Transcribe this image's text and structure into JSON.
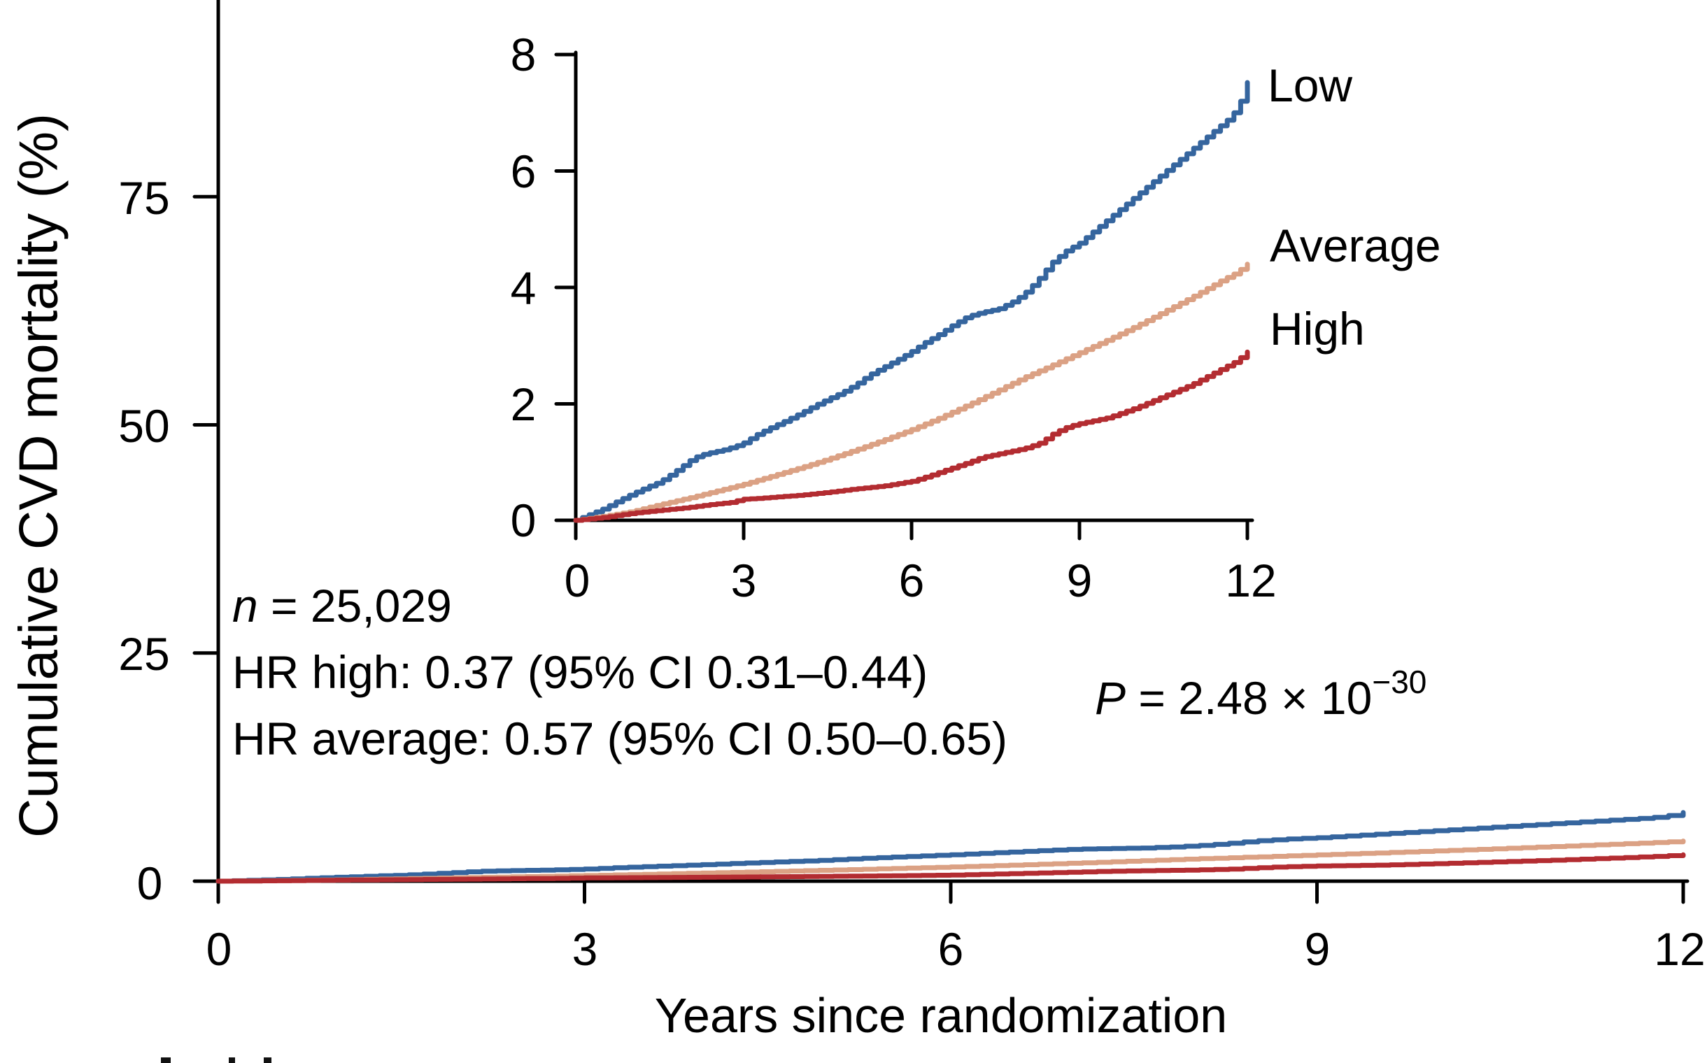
{
  "figure": {
    "y_axis": {
      "label": "Cumulative CVD mortality (%)",
      "ticks": [
        "0",
        "25",
        "50",
        "75"
      ]
    },
    "x_axis": {
      "label": "Years since randomization",
      "ticks": [
        "0",
        "3",
        "6",
        "9",
        "12"
      ]
    },
    "inset": {
      "y_ticks": [
        "0",
        "2",
        "4",
        "6",
        "8"
      ],
      "x_ticks": [
        "0",
        "3",
        "6",
        "9",
        "12"
      ]
    },
    "stats": {
      "n_italic": "n",
      "n_rest": " = 25,029",
      "hr_high": "HR high: 0.37 (95% CI 0.31–0.44)",
      "hr_average": "HR average: 0.57 (95% CI 0.50–0.65)",
      "p_italic": "P",
      "p_rest": " = 2.48 × 10",
      "p_exponent": "−30"
    }
  },
  "colors": {
    "low": "#35659E",
    "average": "#DBA184",
    "high": "#B32C31",
    "axis": "#000000"
  },
  "chart_data": {
    "type": "line",
    "title": "",
    "xlabel": "Years since randomization",
    "ylabel": "Cumulative CVD mortality (%)",
    "x_ticks": [
      0,
      3,
      6,
      9,
      12
    ],
    "xlim": [
      0,
      12
    ],
    "main_view": {
      "ylim": [
        0,
        100
      ],
      "y_ticks": [
        0,
        25,
        50,
        75
      ]
    },
    "inset_view": {
      "ylim": [
        0,
        8
      ],
      "y_ticks": [
        0,
        2,
        4,
        6,
        8
      ]
    },
    "grid": false,
    "legend_position": "right-of-inset-curve-ends",
    "annotations": [
      "n = 25,029",
      "HR high: 0.37 (95% CI 0.31–0.44)",
      "HR average: 0.57 (95% CI 0.50–0.65)",
      "P = 2.48 × 10⁻³⁰"
    ],
    "series": [
      {
        "name": "Low",
        "color": "#35659E",
        "points": [
          [
            0,
            0
          ],
          [
            0.25,
            0.1
          ],
          [
            0.5,
            0.2
          ],
          [
            0.75,
            0.33
          ],
          [
            1,
            0.45
          ],
          [
            1.25,
            0.56
          ],
          [
            1.5,
            0.66
          ],
          [
            1.75,
            0.82
          ],
          [
            1.95,
            0.96
          ],
          [
            2.1,
            1.07
          ],
          [
            2.3,
            1.14
          ],
          [
            2.6,
            1.2
          ],
          [
            2.85,
            1.27
          ],
          [
            3,
            1.33
          ],
          [
            3.25,
            1.48
          ],
          [
            3.5,
            1.6
          ],
          [
            3.75,
            1.71
          ],
          [
            4,
            1.83
          ],
          [
            4.25,
            1.96
          ],
          [
            4.5,
            2.08
          ],
          [
            4.75,
            2.19
          ],
          [
            5,
            2.33
          ],
          [
            5.25,
            2.5
          ],
          [
            5.5,
            2.63
          ],
          [
            5.75,
            2.76
          ],
          [
            6,
            2.9
          ],
          [
            6.25,
            3.06
          ],
          [
            6.5,
            3.2
          ],
          [
            6.75,
            3.36
          ],
          [
            7,
            3.5
          ],
          [
            7.25,
            3.57
          ],
          [
            7.55,
            3.63
          ],
          [
            7.8,
            3.75
          ],
          [
            8,
            3.88
          ],
          [
            8.25,
            4.12
          ],
          [
            8.5,
            4.42
          ],
          [
            8.75,
            4.62
          ],
          [
            9,
            4.76
          ],
          [
            9.25,
            4.96
          ],
          [
            9.5,
            5.16
          ],
          [
            9.75,
            5.36
          ],
          [
            10,
            5.56
          ],
          [
            10.25,
            5.76
          ],
          [
            10.5,
            5.96
          ],
          [
            10.75,
            6.16
          ],
          [
            11,
            6.36
          ],
          [
            11.25,
            6.56
          ],
          [
            11.5,
            6.76
          ],
          [
            11.7,
            6.92
          ],
          [
            11.85,
            7.12
          ],
          [
            11.95,
            7.38
          ],
          [
            12,
            7.52
          ]
        ]
      },
      {
        "name": "Average",
        "color": "#DBA184",
        "points": [
          [
            0,
            0
          ],
          [
            0.5,
            0.07
          ],
          [
            1,
            0.15
          ],
          [
            1.5,
            0.27
          ],
          [
            2,
            0.38
          ],
          [
            2.5,
            0.5
          ],
          [
            3,
            0.62
          ],
          [
            3.5,
            0.76
          ],
          [
            4,
            0.9
          ],
          [
            4.5,
            1.05
          ],
          [
            5,
            1.21
          ],
          [
            5.5,
            1.38
          ],
          [
            6,
            1.56
          ],
          [
            6.5,
            1.76
          ],
          [
            7,
            1.98
          ],
          [
            7.5,
            2.21
          ],
          [
            8,
            2.45
          ],
          [
            8.5,
            2.66
          ],
          [
            9,
            2.88
          ],
          [
            9.5,
            3.1
          ],
          [
            10,
            3.33
          ],
          [
            10.5,
            3.58
          ],
          [
            11,
            3.83
          ],
          [
            11.5,
            4.1
          ],
          [
            11.8,
            4.25
          ],
          [
            12,
            4.4
          ]
        ]
      },
      {
        "name": "High",
        "color": "#B32C31",
        "points": [
          [
            0,
            0
          ],
          [
            0.5,
            0.05
          ],
          [
            1,
            0.12
          ],
          [
            1.5,
            0.17
          ],
          [
            2,
            0.22
          ],
          [
            2.4,
            0.27
          ],
          [
            2.8,
            0.31
          ],
          [
            2.95,
            0.36
          ],
          [
            3.3,
            0.38
          ],
          [
            3.7,
            0.41
          ],
          [
            4,
            0.43
          ],
          [
            4.5,
            0.48
          ],
          [
            5,
            0.54
          ],
          [
            5.5,
            0.59
          ],
          [
            6,
            0.67
          ],
          [
            6.3,
            0.76
          ],
          [
            6.6,
            0.86
          ],
          [
            7,
            0.99
          ],
          [
            7.25,
            1.08
          ],
          [
            7.5,
            1.13
          ],
          [
            8,
            1.23
          ],
          [
            8.3,
            1.33
          ],
          [
            8.55,
            1.5
          ],
          [
            8.8,
            1.61
          ],
          [
            9,
            1.66
          ],
          [
            9.5,
            1.76
          ],
          [
            10,
            1.93
          ],
          [
            10.5,
            2.13
          ],
          [
            11,
            2.33
          ],
          [
            11.5,
            2.58
          ],
          [
            11.8,
            2.73
          ],
          [
            12,
            2.89
          ]
        ]
      }
    ]
  }
}
